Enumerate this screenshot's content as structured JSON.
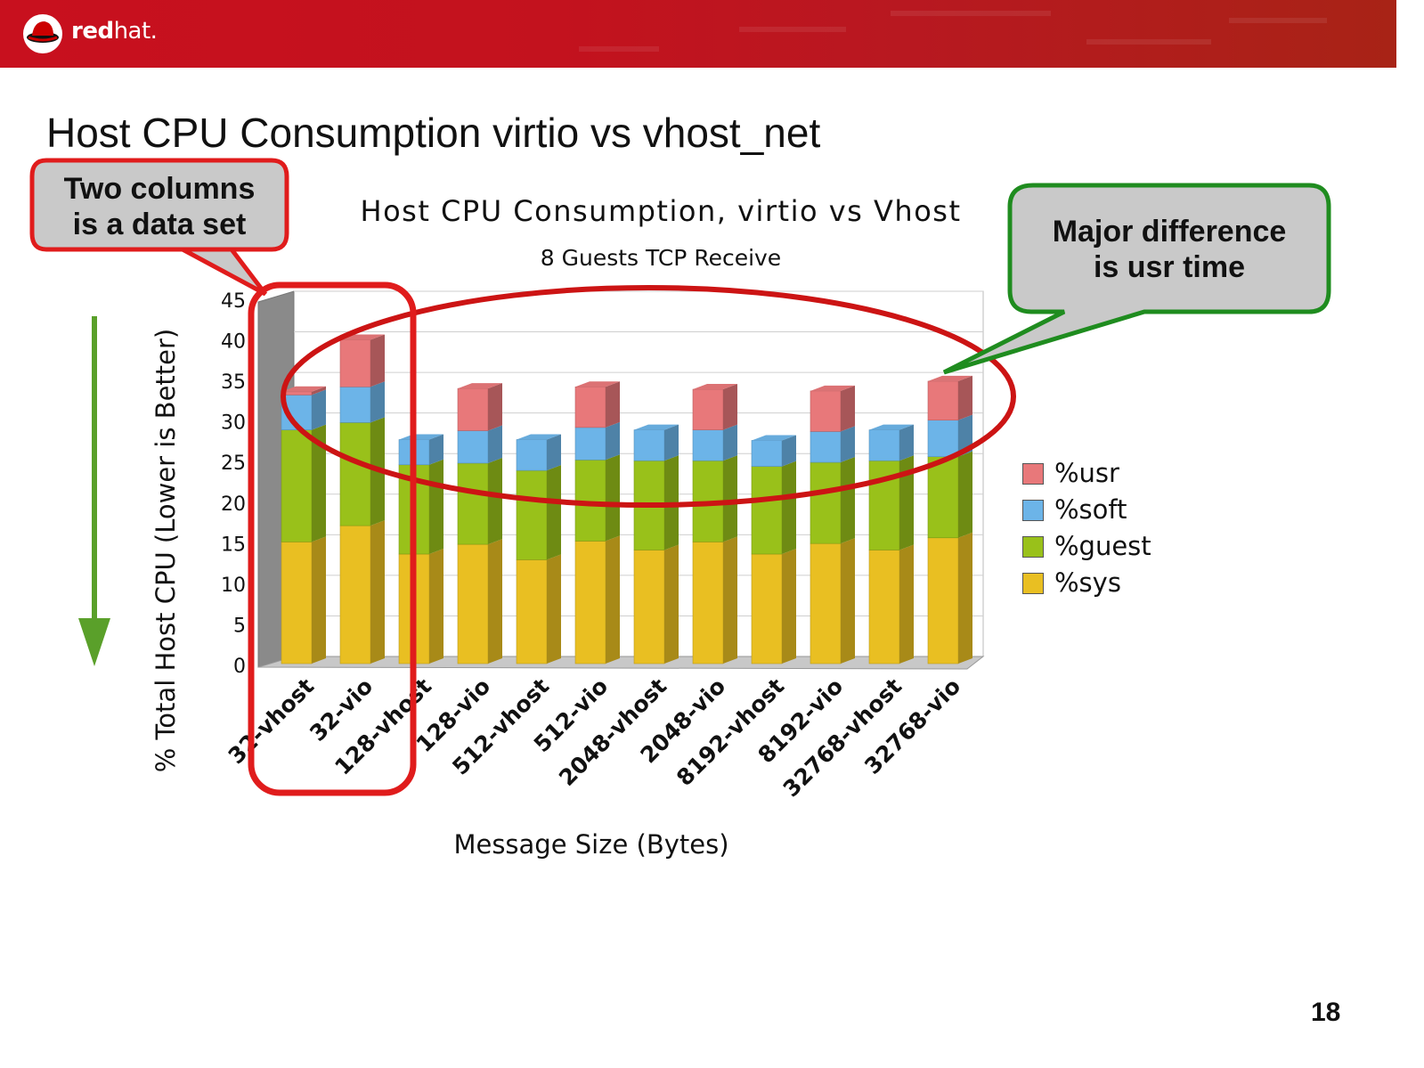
{
  "brand": {
    "name_bold": "red",
    "name_light": "hat."
  },
  "slide": {
    "title": "Host CPU Consumption virtio vs vhost_net",
    "page_number": "18"
  },
  "callouts": {
    "left": {
      "line1": "Two columns",
      "line2": "is a data set"
    },
    "right": {
      "line1": "Major difference",
      "line2": "is usr time"
    }
  },
  "colors": {
    "usr": "#e8787a",
    "soft": "#6cb4e8",
    "guest": "#99c11a",
    "sys": "#e9bf22",
    "callout_left_border": "#e01c1c",
    "callout_right_border": "#1f8c1f",
    "callout_fill": "#c9c9c9",
    "highlight_red": "#cc1414",
    "arrow_green": "#5aa02a"
  },
  "chart_data": {
    "type": "bar",
    "stacked": true,
    "three_d": true,
    "title": "Host CPU Consumption, virtio vs Vhost",
    "subtitle": "8 Guests TCP Receive",
    "xlabel": "Message Size (Bytes)",
    "ylabel": "% Total Host CPU (Lower is Better)",
    "ylim": [
      0,
      45
    ],
    "yticks": [
      0,
      5,
      10,
      15,
      20,
      25,
      30,
      35,
      40,
      45
    ],
    "grid": true,
    "legend_position": "right",
    "categories": [
      "32-vhost",
      "32-vio",
      "128-vhost",
      "128-vio",
      "512-vhost",
      "512-vio",
      "2048-vhost",
      "2048-vio",
      "8192-vhost",
      "8192-vio",
      "32768-vhost",
      "32768-vio"
    ],
    "series": [
      {
        "name": "%sys",
        "key": "sys",
        "values": [
          15.0,
          17.0,
          13.5,
          14.7,
          12.8,
          15.1,
          14.0,
          15.0,
          13.5,
          14.8,
          14.0,
          15.5
        ]
      },
      {
        "name": "%guest",
        "key": "guest",
        "values": [
          13.8,
          12.7,
          11.0,
          10.0,
          11.0,
          10.0,
          11.0,
          10.0,
          10.8,
          10.0,
          11.0,
          10.0
        ]
      },
      {
        "name": "%soft",
        "key": "soft",
        "values": [
          4.3,
          4.4,
          3.1,
          4.0,
          3.8,
          4.0,
          3.8,
          3.8,
          3.2,
          3.8,
          3.8,
          4.5
        ]
      },
      {
        "name": "%usr",
        "key": "usr",
        "values": [
          0.4,
          5.8,
          0.0,
          5.2,
          0.0,
          5.0,
          0.0,
          5.0,
          0.0,
          5.0,
          0.0,
          4.8
        ]
      }
    ]
  }
}
